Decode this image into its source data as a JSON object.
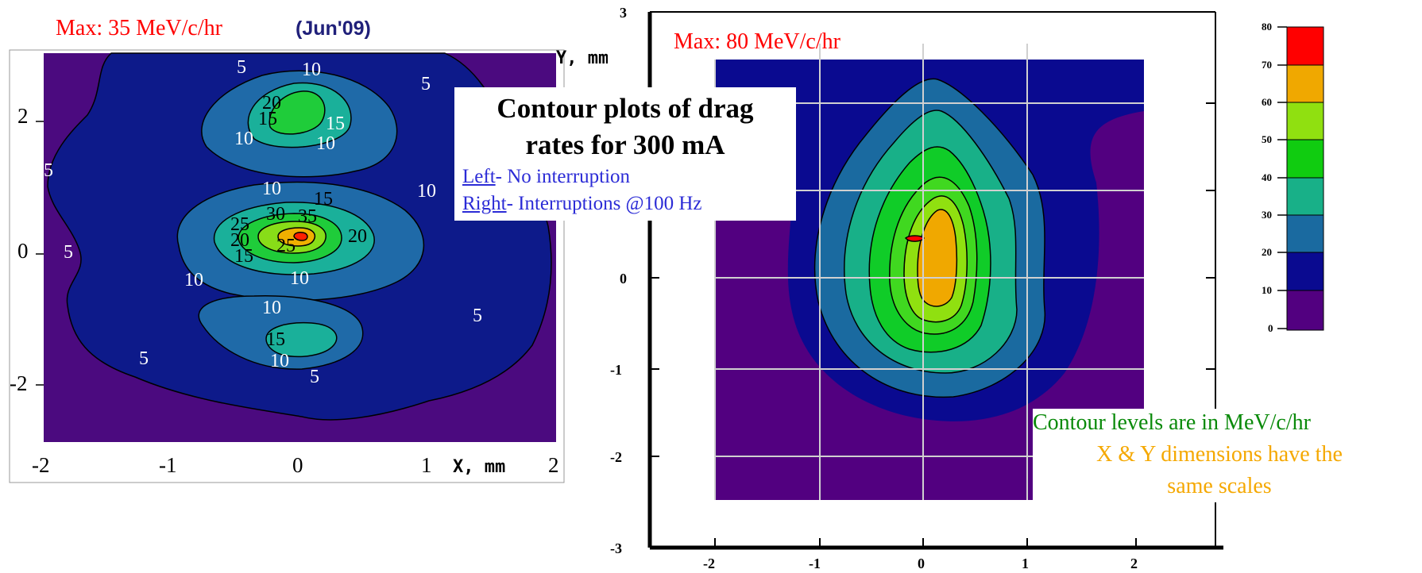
{
  "left_plot": {
    "max_label": "Max: 35 MeV/c/hr",
    "date_label": "(Jun'09)",
    "axis_x_label": "X, mm",
    "axis_y_label": "Y, mm",
    "x_ticks": [
      "-2",
      "-1",
      "0",
      "1",
      "2"
    ],
    "y_ticks": [
      "2",
      "0",
      "-2"
    ],
    "contour_labels": [
      "5",
      "10",
      "5",
      "20",
      "15",
      "15",
      "10",
      "10",
      "5",
      "10",
      "15",
      "10",
      "25",
      "30",
      "35",
      "20",
      "20",
      "25",
      "15",
      "5",
      "10",
      "10",
      "10",
      "5",
      "15",
      "10",
      "5",
      "5"
    ],
    "colors": {
      "bg": "#4b0a7f",
      "l5": "#0d1a8a",
      "l10": "#1f6aa8",
      "l15": "#1ab09a",
      "l20": "#1fcc3a",
      "l25": "#88dd18",
      "l30": "#f0b000",
      "l35": "#ff2000"
    }
  },
  "right_plot": {
    "max_label": "Max: 80 MeV/c/hr",
    "x_ticks": [
      "-2",
      "-1",
      "0",
      "1",
      "2"
    ],
    "y_ticks": [
      "3",
      "0",
      "-1",
      "-2",
      "-3"
    ],
    "colors": {
      "bg": "#520080",
      "l10": "#0a0a90",
      "l20": "#1a6aa0",
      "l30": "#18b088",
      "l40": "#10cc28",
      "l50": "#40d820",
      "l60": "#90e010",
      "l70": "#f0a800",
      "l80": "#ff0000"
    }
  },
  "colorbar": {
    "ticks": [
      "80",
      "70",
      "60",
      "50",
      "40",
      "30",
      "20",
      "10",
      "0"
    ],
    "colors": [
      "#ff0000",
      "#f0a800",
      "#90e010",
      "#10cc10",
      "#18b088",
      "#1a6aa0",
      "#0a0a90",
      "#520080"
    ]
  },
  "info": {
    "title_line1": "Contour plots of drag",
    "title_line2": "rates for 300 mA",
    "left_word": "Left",
    "left_rest": "- No interruption",
    "right_word": "Right",
    "right_rest": "- Interruptions @100 Hz"
  },
  "notes": {
    "units": "Contour levels are in MeV/c/hr",
    "scales_line1": "X & Y dimensions have the",
    "scales_line2": "same scales"
  },
  "chart_data": [
    {
      "type": "heatmap",
      "title": "Max: 35 MeV/c/hr",
      "xlabel": "X, mm",
      "ylabel": "Y, mm",
      "xlim": [
        -2,
        2
      ],
      "ylim": [
        -3,
        3
      ],
      "max_value": 35,
      "contour_levels": [
        5,
        10,
        15,
        20,
        25,
        30,
        35
      ]
    },
    {
      "type": "heatmap",
      "title": "Max: 80 MeV/c/hr",
      "xlim": [
        -2,
        2
      ],
      "ylim": [
        -3,
        3
      ],
      "max_value": 80,
      "contour_levels": [
        10,
        20,
        30,
        40,
        50,
        60,
        70,
        80
      ],
      "colorbar_ticks": [
        0,
        10,
        20,
        30,
        40,
        50,
        60,
        70,
        80
      ]
    }
  ]
}
